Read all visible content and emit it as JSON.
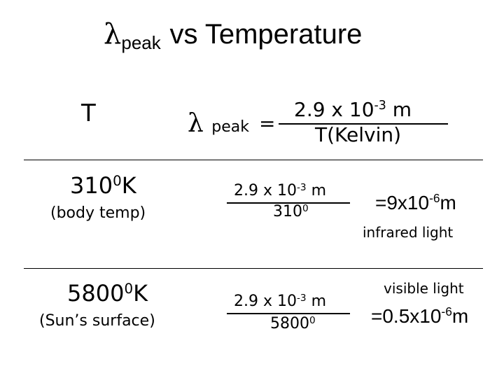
{
  "title": {
    "symbol": "λ",
    "subscript": "peak",
    "rest": "vs Temperature"
  },
  "header": {
    "col_t": "T",
    "formula": {
      "lhs_symbol": "λ",
      "lhs_subscript": "peak",
      "equals": "=",
      "num_base": "2.9 x 10",
      "num_exp": "-3",
      "num_unit": " m",
      "den": "T(Kelvin)"
    }
  },
  "rows": [
    {
      "temp": "310",
      "temp_sup": "0",
      "temp_unit": "K",
      "label": "(body temp)",
      "num_base": "2.9 x 10",
      "num_exp": "-3",
      "num_unit": " m",
      "den": "310",
      "den_sup": "0",
      "result_base": "=9x10",
      "result_exp": "-6",
      "result_unit": "m",
      "light": "infrared light"
    },
    {
      "temp": "5800",
      "temp_sup": "0",
      "temp_unit": "K",
      "label": "(Sun’s surface)",
      "num_base": "2.9 x 10",
      "num_exp": "-3",
      "num_unit": " m",
      "den": "5800",
      "den_sup": "0",
      "result_base": "=0.5x10",
      "result_exp": "-6",
      "result_unit": "m",
      "light": "visible light"
    }
  ]
}
